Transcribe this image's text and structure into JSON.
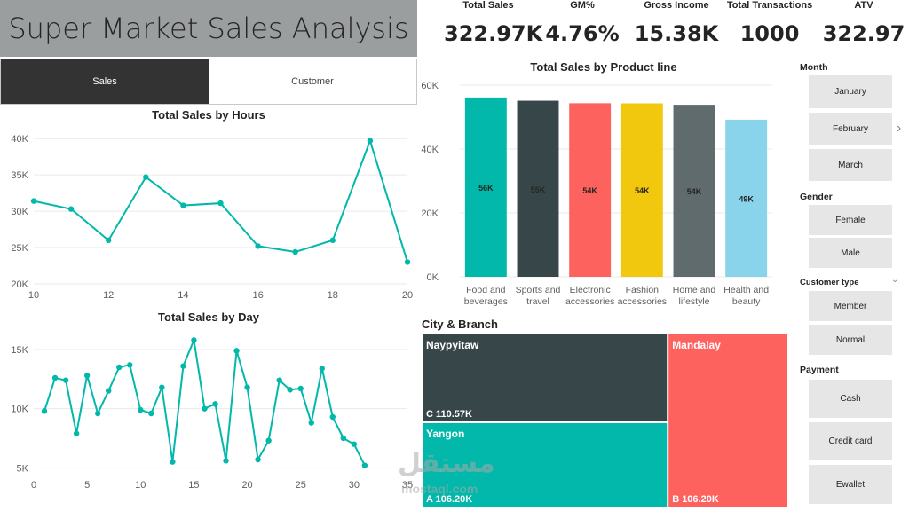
{
  "header": {
    "title": "Super Market Sales Analysis"
  },
  "tabs": [
    {
      "label": "Sales",
      "active": true
    },
    {
      "label": "Customer",
      "active": false
    }
  ],
  "kpis": [
    {
      "label": "Total Sales",
      "value": "322.97K"
    },
    {
      "label": "GM%",
      "value": "4.76%"
    },
    {
      "label": "Gross Income",
      "value": "15.38K"
    },
    {
      "label": "Total Transactions",
      "value": "1000"
    },
    {
      "label": "ATV",
      "value": "322.97"
    }
  ],
  "slicers": {
    "month": {
      "title": "Month",
      "options": [
        "January",
        "February",
        "March"
      ]
    },
    "gender": {
      "title": "Gender",
      "options": [
        "Female",
        "Male"
      ]
    },
    "customer_type": {
      "title": "Customer type",
      "options": [
        "Member",
        "Normal"
      ]
    },
    "payment": {
      "title": "Payment",
      "options": [
        "Cash",
        "Credit card",
        "Ewallet"
      ]
    }
  },
  "watermark": {
    "arabic": "مستقل",
    "latin": "mostaql.com"
  },
  "colors": {
    "teal": "#01b8aa",
    "dark": "#374649",
    "red": "#fd625e",
    "yellow": "#f2c80f",
    "gray": "#5f6b6d",
    "lightblue": "#8ad4eb"
  },
  "chart_data": [
    {
      "id": "hours",
      "type": "line",
      "title": "Total Sales by Hours",
      "x": [
        10,
        11,
        12,
        13,
        14,
        15,
        16,
        17,
        18,
        19,
        20
      ],
      "values": [
        31400,
        30300,
        26000,
        34700,
        30800,
        31100,
        25200,
        24400,
        26000,
        39700,
        23000
      ],
      "xticks": [
        10,
        12,
        14,
        16,
        18,
        20
      ],
      "yticks": [
        20000,
        25000,
        30000,
        35000,
        40000
      ],
      "ytick_labels": [
        "20K",
        "25K",
        "30K",
        "35K",
        "40K"
      ],
      "xlim": [
        10,
        20
      ],
      "ylim": [
        20000,
        41000
      ],
      "xlabel": "",
      "ylabel": "",
      "grid": true
    },
    {
      "id": "day",
      "type": "line",
      "title": "Total Sales by Day",
      "x": [
        1,
        2,
        3,
        4,
        5,
        6,
        7,
        8,
        9,
        10,
        11,
        12,
        13,
        14,
        15,
        16,
        17,
        18,
        19,
        20,
        21,
        22,
        23,
        24,
        25,
        26,
        27,
        28,
        29,
        30,
        31
      ],
      "values": [
        9800,
        12600,
        12400,
        7900,
        12800,
        9600,
        11500,
        13500,
        13700,
        9900,
        9600,
        11800,
        5500,
        13600,
        15800,
        10000,
        10400,
        5600,
        14900,
        11800,
        5700,
        7300,
        12400,
        11600,
        11700,
        8800,
        13400,
        9300,
        7500,
        7000,
        5200
      ],
      "xticks": [
        0,
        5,
        10,
        15,
        20,
        25,
        30,
        35
      ],
      "yticks": [
        5000,
        10000,
        15000
      ],
      "ytick_labels": [
        "5K",
        "10K",
        "15K"
      ],
      "xlim": [
        0,
        35
      ],
      "ylim": [
        4500,
        16500
      ],
      "xlabel": "",
      "ylabel": "",
      "grid": true
    },
    {
      "id": "product",
      "type": "bar",
      "title": "Total Sales by Product line",
      "categories": [
        "Food and beverages",
        "Sports and travel",
        "Electronic accessories",
        "Fashion accessories",
        "Home and lifestyle",
        "Health and beauty"
      ],
      "category_lines": [
        [
          "Food and",
          "beverages"
        ],
        [
          "Sports and",
          "travel"
        ],
        [
          "Electronic",
          "accessories"
        ],
        [
          "Fashion",
          "accessories"
        ],
        [
          "Home and",
          "lifestyle"
        ],
        [
          "Health and",
          "beauty"
        ]
      ],
      "values": [
        56144,
        55123,
        54338,
        54306,
        53862,
        49194
      ],
      "data_labels": [
        "56K",
        "55K",
        "54K",
        "54K",
        "54K",
        "49K"
      ],
      "colors": [
        "#01b8aa",
        "#374649",
        "#fd625e",
        "#f2c80f",
        "#5f6b6d",
        "#8ad4eb"
      ],
      "yticks": [
        0,
        20000,
        40000,
        60000
      ],
      "ytick_labels": [
        "0K",
        "20K",
        "40K",
        "60K"
      ],
      "ylim": [
        0,
        60000
      ],
      "xlabel": "",
      "ylabel": "",
      "grid": true
    },
    {
      "id": "city",
      "type": "treemap",
      "title": "City & Branch",
      "nodes": [
        {
          "city": "Naypyitaw",
          "branch": "C",
          "value": 110570,
          "label": "C 110.57K",
          "color": "#374649"
        },
        {
          "city": "Yangon",
          "branch": "A",
          "value": 106200,
          "label": "A 106.20K",
          "color": "#01b8aa"
        },
        {
          "city": "Mandalay",
          "branch": "B",
          "value": 106200,
          "label": "B 106.20K",
          "color": "#fd625e"
        }
      ]
    }
  ]
}
